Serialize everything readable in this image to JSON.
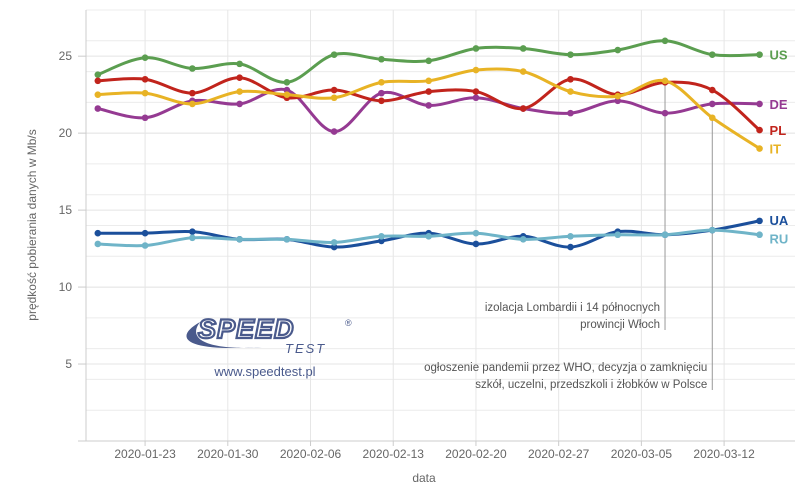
{
  "chart_data": {
    "type": "line",
    "title": "",
    "xlabel": "data",
    "ylabel": "prędkość pobierania danych w Mb/s",
    "xlim": [
      "2020-01-18",
      "2020-03-18"
    ],
    "ylim": [
      0,
      28
    ],
    "x_ticks": [
      "2020-01-23",
      "2020-01-30",
      "2020-02-06",
      "2020-02-13",
      "2020-02-20",
      "2020-02-27",
      "2020-03-05",
      "2020-03-12"
    ],
    "y_ticks": [
      5,
      10,
      15,
      20,
      25
    ],
    "grid": true,
    "legend": "labels at line ends (right)",
    "x": [
      "2020-01-19",
      "2020-01-23",
      "2020-01-27",
      "2020-01-31",
      "2020-02-04",
      "2020-02-08",
      "2020-02-12",
      "2020-02-16",
      "2020-02-20",
      "2020-02-24",
      "2020-02-28",
      "2020-03-03",
      "2020-03-07",
      "2020-03-11",
      "2020-03-15"
    ],
    "series": [
      {
        "name": "US",
        "color": "#5b9e50",
        "values": [
          23.8,
          24.9,
          24.2,
          24.5,
          23.3,
          25.1,
          24.8,
          24.7,
          25.5,
          25.5,
          25.1,
          25.4,
          26.0,
          25.1,
          25.1
        ]
      },
      {
        "name": "DE",
        "color": "#953a92",
        "values": [
          21.6,
          21.0,
          22.1,
          21.9,
          22.8,
          20.1,
          22.6,
          21.8,
          22.3,
          21.6,
          21.3,
          22.1,
          21.3,
          21.9,
          21.9
        ]
      },
      {
        "name": "PL",
        "color": "#c1241c",
        "values": [
          23.4,
          23.5,
          22.6,
          23.6,
          22.3,
          22.8,
          22.1,
          22.7,
          22.7,
          21.6,
          23.5,
          22.5,
          23.3,
          22.8,
          20.2
        ]
      },
      {
        "name": "IT",
        "color": "#e8b325",
        "values": [
          22.5,
          22.6,
          21.9,
          22.7,
          22.5,
          22.3,
          23.3,
          23.4,
          24.1,
          24.0,
          22.7,
          22.4,
          23.4,
          21.0,
          19.0
        ]
      },
      {
        "name": "UA",
        "color": "#1b4f9b",
        "values": [
          13.5,
          13.5,
          13.6,
          13.1,
          13.1,
          12.6,
          13.0,
          13.5,
          12.8,
          13.3,
          12.6,
          13.6,
          13.4,
          13.7,
          14.3
        ]
      },
      {
        "name": "RU",
        "color": "#6fb4c8",
        "values": [
          12.8,
          12.7,
          13.2,
          13.1,
          13.1,
          12.9,
          13.3,
          13.3,
          13.5,
          13.1,
          13.3,
          13.4,
          13.4,
          13.7,
          13.4
        ]
      }
    ],
    "annotations": [
      {
        "date": "2020-03-07",
        "lines": [
          "izolacja Lombardii i 14 północnych",
          "prowincji Włoch"
        ]
      },
      {
        "date": "2020-03-11",
        "lines": [
          "ogłoszenie pandemii przez WHO, decyzja o zamknięciu",
          "szkół, uczelni, przedszkoli i żłobków w Polsce"
        ]
      }
    ]
  },
  "logo": {
    "brand": "SPEED",
    "sub": "TEST",
    "mark": "®",
    "url": "www.speedtest.pl",
    "color": "#4a5a8c"
  }
}
